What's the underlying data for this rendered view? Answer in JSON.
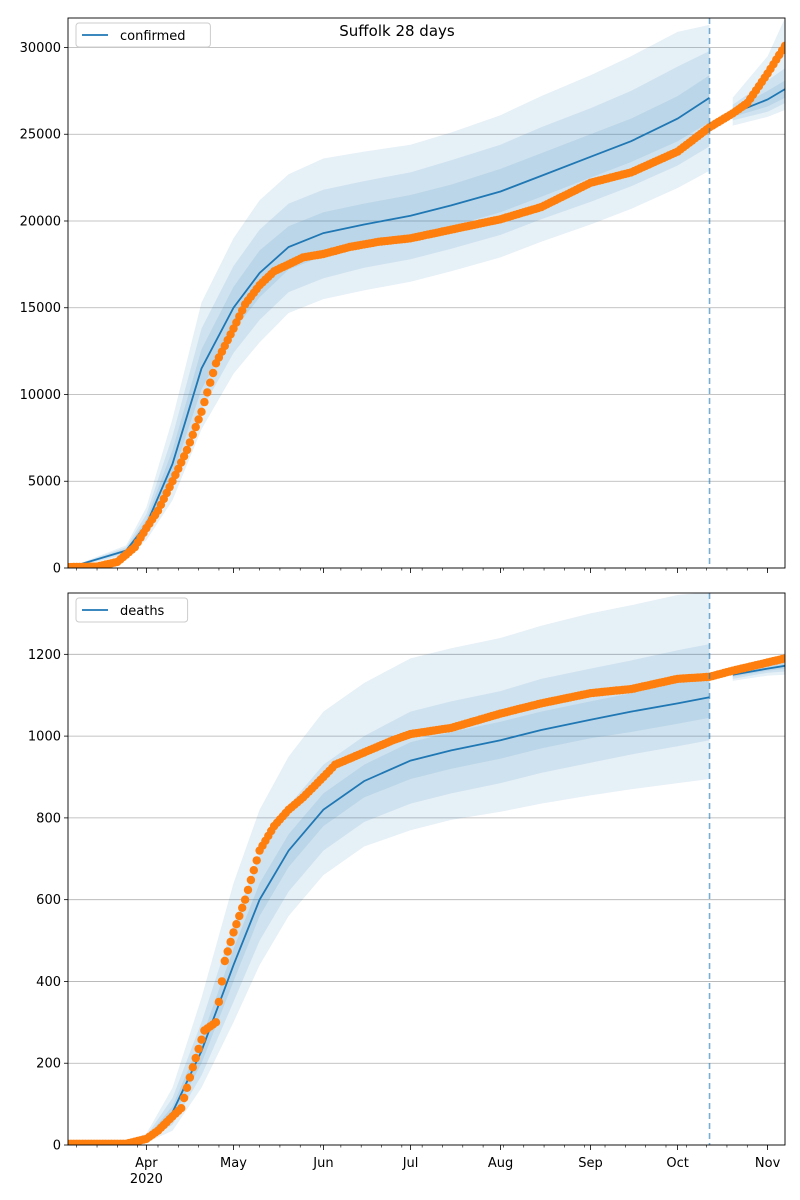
{
  "figure": {
    "title": "Suffolk 28 days"
  },
  "chart_data": [
    {
      "type": "line",
      "panel": "top",
      "title": "Suffolk 28 days",
      "legend": {
        "entries": [
          "confirmed"
        ],
        "position": "top-left"
      },
      "xaxis": {
        "range": [
          "2020-03-05",
          "2020-11-07"
        ],
        "ticks": [
          {
            "date": "2020-04-01",
            "label": "Apr"
          },
          {
            "date": "2020-05-01",
            "label": "May"
          },
          {
            "date": "2020-06-01",
            "label": "Jun"
          },
          {
            "date": "2020-07-01",
            "label": "Jul"
          },
          {
            "date": "2020-08-01",
            "label": "Aug"
          },
          {
            "date": "2020-09-01",
            "label": "Sep"
          },
          {
            "date": "2020-10-01",
            "label": "Oct"
          },
          {
            "date": "2020-11-01",
            "label": "Nov"
          }
        ],
        "tick_labels_shown": false
      },
      "yaxis": {
        "range": [
          0,
          31700
        ],
        "ticks": [
          0,
          5000,
          10000,
          15000,
          20000,
          25000,
          30000
        ],
        "tick_labels": [
          "0",
          "5000",
          "10000",
          "15000",
          "20000",
          "25000",
          "30000"
        ],
        "grid": true
      },
      "forecast_start": "2020-10-12",
      "series": [
        {
          "name": "confirmed",
          "role": "model",
          "color": "#1f77b4",
          "x": [
            "2020-03-05",
            "2020-03-25",
            "2020-04-01",
            "2020-04-10",
            "2020-04-20",
            "2020-05-01",
            "2020-05-10",
            "2020-05-20",
            "2020-06-01",
            "2020-06-15",
            "2020-07-01",
            "2020-07-15",
            "2020-08-01",
            "2020-08-15",
            "2020-09-01",
            "2020-09-15",
            "2020-10-01",
            "2020-10-12",
            "2020-10-20",
            "2020-11-01",
            "2020-11-07"
          ],
          "values": [
            0,
            1000,
            2500,
            6000,
            11500,
            15000,
            17000,
            18500,
            19300,
            19800,
            20300,
            20900,
            21700,
            22600,
            23700,
            24600,
            25900,
            27100,
            26200,
            27000,
            27600
          ],
          "bands": {
            "inner": {
              "lower": [
                0,
                900,
                2200,
                5300,
                10300,
                13700,
                15600,
                17200,
                18000,
                18600,
                19100,
                19700,
                20500,
                21400,
                22500,
                23400,
                24600,
                25700,
                26000,
                26600,
                27100
              ],
              "upper": [
                0,
                1100,
                2800,
                6800,
                12600,
                16200,
                18300,
                19700,
                20500,
                21000,
                21500,
                22100,
                23000,
                23900,
                25000,
                25900,
                27200,
                28400,
                26400,
                27500,
                28100
              ]
            },
            "middle": {
              "lower": [
                0,
                800,
                1900,
                4600,
                9100,
                12400,
                14300,
                15900,
                16700,
                17300,
                17800,
                18400,
                19200,
                20100,
                21100,
                22000,
                23200,
                24300,
                25800,
                26300,
                26800
              ],
              "upper": [
                0,
                1200,
                3100,
                7600,
                13800,
                17400,
                19500,
                21000,
                21800,
                22300,
                22800,
                23500,
                24400,
                25400,
                26500,
                27500,
                28900,
                29800,
                26700,
                28100,
                28800
              ]
            },
            "outer": {
              "lower": [
                0,
                700,
                1600,
                3900,
                8000,
                11200,
                13000,
                14700,
                15500,
                16000,
                16500,
                17100,
                17900,
                18800,
                19800,
                20700,
                21900,
                22900,
                25500,
                26000,
                26400
              ],
              "upper": [
                0,
                1300,
                3500,
                8600,
                15300,
                19000,
                21200,
                22700,
                23600,
                24000,
                24400,
                25100,
                26100,
                27200,
                28400,
                29500,
                30900,
                31300,
                27100,
                29500,
                31700
              ]
            }
          }
        },
        {
          "name": "",
          "role": "observed",
          "color": "#ff7f0e",
          "x": [
            "2020-03-05",
            "2020-03-15",
            "2020-03-22",
            "2020-03-28",
            "2020-04-01",
            "2020-04-05",
            "2020-04-10",
            "2020-04-15",
            "2020-04-20",
            "2020-04-25",
            "2020-05-01",
            "2020-05-05",
            "2020-05-10",
            "2020-05-15",
            "2020-05-20",
            "2020-05-25",
            "2020-06-01",
            "2020-06-10",
            "2020-06-20",
            "2020-07-01",
            "2020-07-15",
            "2020-08-01",
            "2020-08-15",
            "2020-09-01",
            "2020-09-15",
            "2020-10-01",
            "2020-10-12",
            "2020-10-20",
            "2020-10-25",
            "2020-11-01",
            "2020-11-07"
          ],
          "values": [
            50,
            80,
            350,
            1200,
            2300,
            3300,
            5000,
            6800,
            9000,
            11800,
            13800,
            15200,
            16300,
            17100,
            17500,
            17900,
            18100,
            18500,
            18800,
            19000,
            19500,
            20100,
            20800,
            22200,
            22800,
            24000,
            25400,
            26200,
            26800,
            28500,
            30100
          ]
        }
      ]
    },
    {
      "type": "line",
      "panel": "bottom",
      "legend": {
        "entries": [
          "deaths"
        ],
        "position": "top-left"
      },
      "xaxis": {
        "range": [
          "2020-03-05",
          "2020-11-07"
        ],
        "ticks": [
          {
            "date": "2020-04-01",
            "label": "Apr",
            "sublabel": "2020"
          },
          {
            "date": "2020-05-01",
            "label": "May"
          },
          {
            "date": "2020-06-01",
            "label": "Jun"
          },
          {
            "date": "2020-07-01",
            "label": "Jul"
          },
          {
            "date": "2020-08-01",
            "label": "Aug"
          },
          {
            "date": "2020-09-01",
            "label": "Sep"
          },
          {
            "date": "2020-10-01",
            "label": "Oct"
          },
          {
            "date": "2020-11-01",
            "label": "Nov"
          }
        ],
        "tick_labels_shown": true
      },
      "yaxis": {
        "range": [
          0,
          1350
        ],
        "ticks": [
          0,
          200,
          400,
          600,
          800,
          1000,
          1200
        ],
        "tick_labels": [
          "0",
          "200",
          "400",
          "600",
          "800",
          "1000",
          "1200"
        ],
        "grid": true
      },
      "forecast_start": "2020-10-12",
      "series": [
        {
          "name": "deaths",
          "role": "model",
          "color": "#1f77b4",
          "x": [
            "2020-03-05",
            "2020-03-25",
            "2020-04-01",
            "2020-04-10",
            "2020-04-20",
            "2020-05-01",
            "2020-05-10",
            "2020-05-20",
            "2020-06-01",
            "2020-06-15",
            "2020-07-01",
            "2020-07-15",
            "2020-08-01",
            "2020-08-15",
            "2020-09-01",
            "2020-09-15",
            "2020-10-01",
            "2020-10-12",
            "2020-10-20",
            "2020-11-01",
            "2020-11-07"
          ],
          "values": [
            0,
            5,
            15,
            80,
            230,
            440,
            600,
            720,
            820,
            890,
            940,
            965,
            990,
            1015,
            1040,
            1060,
            1080,
            1095,
            1150,
            1165,
            1172
          ],
          "bands": {
            "inner": {
              "lower": [
                0,
                4,
                12,
                65,
                200,
                400,
                560,
                680,
                780,
                850,
                895,
                920,
                945,
                970,
                995,
                1010,
                1030,
                1045,
                1145,
                1160,
                1165
              ],
              "upper": [
                0,
                6,
                18,
                95,
                260,
                480,
                640,
                760,
                860,
                930,
                985,
                1010,
                1035,
                1060,
                1085,
                1105,
                1130,
                1145,
                1155,
                1170,
                1180
              ]
            },
            "middle": {
              "lower": [
                0,
                3,
                9,
                50,
                170,
                350,
                500,
                620,
                720,
                790,
                835,
                860,
                885,
                910,
                935,
                955,
                975,
                990,
                1140,
                1155,
                1158
              ],
              "upper": [
                0,
                8,
                22,
                115,
                300,
                540,
                710,
                830,
                930,
                1000,
                1060,
                1085,
                1110,
                1140,
                1165,
                1185,
                1210,
                1225,
                1160,
                1175,
                1188
              ]
            },
            "outer": {
              "lower": [
                0,
                2,
                6,
                35,
                140,
                300,
                440,
                560,
                660,
                730,
                770,
                795,
                815,
                835,
                855,
                870,
                885,
                895,
                1135,
                1148,
                1150
              ],
              "upper": [
                0,
                10,
                28,
                140,
                360,
                640,
                820,
                950,
                1060,
                1130,
                1190,
                1215,
                1240,
                1270,
                1300,
                1320,
                1345,
                1352,
                1168,
                1182,
                1195
              ]
            }
          }
        },
        {
          "name": "",
          "role": "observed",
          "color": "#ff7f0e",
          "x": [
            "2020-03-05",
            "2020-03-25",
            "2020-04-01",
            "2020-04-05",
            "2020-04-10",
            "2020-04-13",
            "2020-04-17",
            "2020-04-21",
            "2020-04-25",
            "2020-04-28",
            "2020-05-01",
            "2020-05-05",
            "2020-05-10",
            "2020-05-15",
            "2020-05-20",
            "2020-05-25",
            "2020-06-01",
            "2020-06-05",
            "2020-06-15",
            "2020-06-25",
            "2020-07-01",
            "2020-07-15",
            "2020-08-01",
            "2020-08-15",
            "2020-09-01",
            "2020-09-15",
            "2020-10-01",
            "2020-10-12",
            "2020-10-20",
            "2020-11-01",
            "2020-11-07"
          ],
          "values": [
            3,
            3,
            15,
            35,
            70,
            90,
            190,
            280,
            300,
            450,
            520,
            600,
            720,
            780,
            820,
            850,
            900,
            930,
            960,
            990,
            1005,
            1020,
            1055,
            1080,
            1105,
            1115,
            1140,
            1145,
            1160,
            1180,
            1190
          ]
        }
      ]
    }
  ]
}
